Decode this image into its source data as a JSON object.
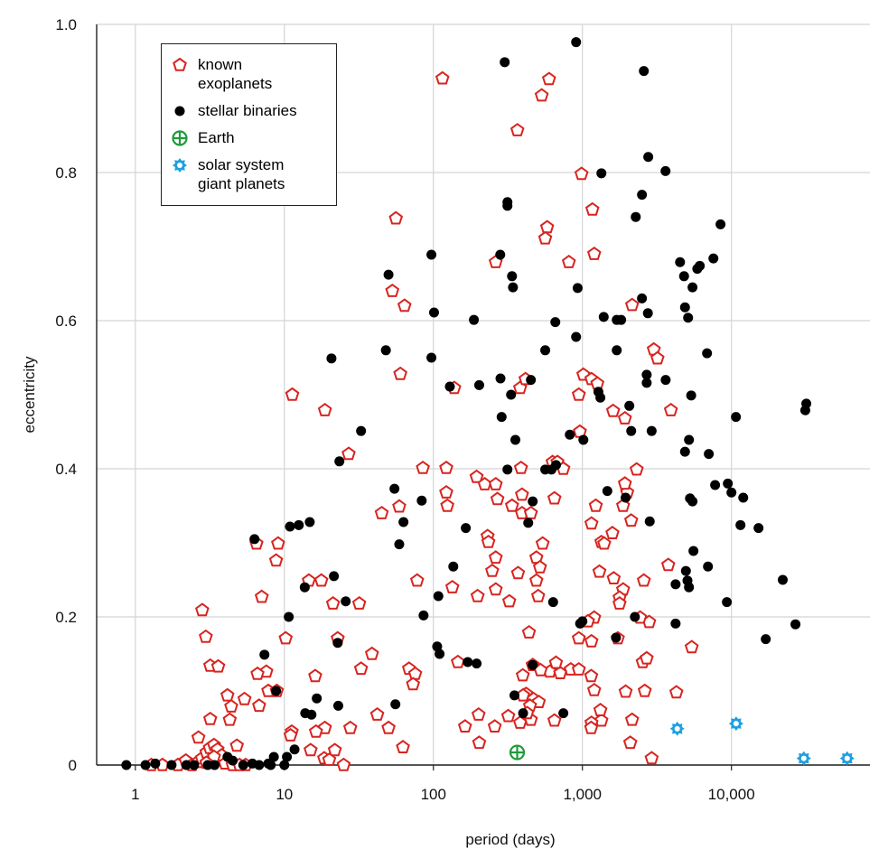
{
  "chart_data": {
    "type": "scatter",
    "xlabel": "period (days)",
    "ylabel": "eccentricity",
    "xscale": "log",
    "xlim": [
      0.55,
      85000
    ],
    "ylim": [
      0,
      1
    ],
    "xticks": [
      1,
      10,
      100,
      {
        "value": 1000,
        "label": "1,000"
      },
      {
        "value": 10000,
        "label": "10,000"
      }
    ],
    "yticks": [
      0,
      0.2,
      0.4,
      0.6,
      0.8,
      {
        "value": 1,
        "label": "1.0"
      }
    ],
    "grid": true,
    "legend": "upper left",
    "series": [
      {
        "name": "known exoplanets",
        "color": "#d8241f",
        "marker": "pentagon",
        "x": [
          115,
          597,
          533,
          366,
          986,
          1167,
          56,
          580,
          563,
          1200,
          811,
          262,
          53,
          64,
          2155,
          3013,
          3190,
          60,
          1015,
          1150,
          1260,
          382,
          138,
          415,
          11.3,
          946,
          18.7,
          1607,
          3925,
          1928,
          962,
          27,
          85,
          122,
          387,
          631,
          680,
          745,
          2313,
          195,
          221,
          262,
          122,
          393,
          269,
          649,
          124,
          337,
          393,
          451,
          45,
          59,
          1150,
          1230,
          1875,
          2125,
          2000,
          1928,
          231,
          234,
          541,
          1341,
          1400,
          1590,
          9.08,
          6.5,
          8.8,
          262,
          491,
          519,
          248,
          1300,
          1622,
          2584,
          3767,
          14.6,
          17.7,
          77.8,
          491,
          370,
          262,
          1875,
          1775,
          1775,
          505,
          198,
          323,
          134,
          7.05,
          21.2,
          2.81,
          31.8,
          1200,
          1090,
          2806,
          2440,
          1150,
          946,
          438,
          1728,
          5410,
          10.2,
          22.8,
          2.97,
          38.7,
          32.7,
          7.57,
          6.6,
          16.1,
          68.6,
          75.5,
          73,
          3.18,
          3.6,
          146,
          464,
          835,
          946,
          604,
          710,
          665,
          1145,
          2540,
          2700,
          1200,
          398,
          524,
          419,
          470,
          510,
          445,
          400,
          4270,
          1950,
          2620,
          7.8,
          8.9,
          5.4,
          4.15,
          4.4,
          6.77,
          4.3,
          3.18,
          42,
          201,
          318,
          382,
          451,
          426,
          163,
          258,
          1341,
          1150,
          1320,
          2155,
          649,
          1145,
          50,
          27.7,
          18.7,
          16.3,
          11.2,
          11,
          62.5,
          203,
          2095,
          15,
          21.8,
          18.5,
          20,
          2915,
          25,
          1.28,
          1.52,
          1.93,
          2.18,
          2.4,
          2.62,
          2.8,
          3.0,
          3.16,
          3.37,
          3.56,
          3.8,
          4.0,
          4.5,
          5,
          5.5,
          4.8,
          2.65,
          3.37,
          3.0
        ],
        "y": [
          0.927,
          0.926,
          0.904,
          0.857,
          0.798,
          0.75,
          0.738,
          0.726,
          0.711,
          0.69,
          0.679,
          0.679,
          0.64,
          0.62,
          0.621,
          0.561,
          0.549,
          0.528,
          0.527,
          0.521,
          0.515,
          0.509,
          0.509,
          0.521,
          0.5,
          0.5,
          0.479,
          0.478,
          0.479,
          0.468,
          0.45,
          0.42,
          0.401,
          0.401,
          0.401,
          0.409,
          0.409,
          0.4,
          0.399,
          0.389,
          0.379,
          0.379,
          0.368,
          0.365,
          0.359,
          0.36,
          0.35,
          0.35,
          0.34,
          0.34,
          0.34,
          0.349,
          0.326,
          0.35,
          0.35,
          0.33,
          0.368,
          0.38,
          0.309,
          0.301,
          0.299,
          0.301,
          0.299,
          0.313,
          0.299,
          0.299,
          0.276,
          0.28,
          0.28,
          0.267,
          0.262,
          0.261,
          0.252,
          0.249,
          0.27,
          0.249,
          0.249,
          0.249,
          0.249,
          0.259,
          0.237,
          0.237,
          0.226,
          0.218,
          0.228,
          0.228,
          0.221,
          0.24,
          0.227,
          0.218,
          0.209,
          0.218,
          0.199,
          0.194,
          0.193,
          0.199,
          0.167,
          0.171,
          0.179,
          0.171,
          0.159,
          0.171,
          0.171,
          0.173,
          0.15,
          0.13,
          0.126,
          0.123,
          0.12,
          0.13,
          0.123,
          0.109,
          0.134,
          0.133,
          0.139,
          0.135,
          0.129,
          0.129,
          0.126,
          0.124,
          0.138,
          0.12,
          0.139,
          0.144,
          0.101,
          0.121,
          0.128,
          0.096,
          0.089,
          0.085,
          0.08,
          0.094,
          0.098,
          0.099,
          0.1,
          0.1,
          0.1,
          0.089,
          0.094,
          0.079,
          0.08,
          0.061,
          0.062,
          0.068,
          0.068,
          0.066,
          0.057,
          0.061,
          0.07,
          0.052,
          0.052,
          0.06,
          0.057,
          0.074,
          0.061,
          0.06,
          0.05,
          0.05,
          0.05,
          0.05,
          0.045,
          0.045,
          0.04,
          0.024,
          0.03,
          0.03,
          0.02,
          0.02,
          0.009,
          0.007,
          0.009,
          0,
          0,
          0,
          0,
          0.006,
          0,
          0.004,
          0.009,
          0.017,
          0.023,
          0.027,
          0.021,
          0.013,
          0.002,
          0,
          0,
          0,
          0.026,
          0.037,
          0.011,
          0.003
        ]
      },
      {
        "name": "stellar binaries",
        "color": "#000000",
        "marker": "circle",
        "x": [
          907,
          301,
          2584,
          1341,
          2766,
          3612,
          2510,
          314,
          314,
          2280,
          8450,
          281,
          97,
          7570,
          6130,
          5900,
          4520,
          4810,
          5480,
          50,
          337,
          342,
          929,
          2510,
          4880,
          2750,
          101,
          1390,
          1700,
          1820,
          187,
          5120,
          658,
          907,
          6860,
          48,
          563,
          1700,
          20.7,
          97,
          5370,
          332,
          31800,
          31300,
          282,
          3620,
          2700,
          2700,
          1280,
          1320,
          451,
          129,
          203,
          287,
          10720,
          2065,
          2125,
          2915,
          32.7,
          1015,
          355,
          823,
          5190,
          4880,
          7050,
          23.4,
          665,
          563,
          620,
          314,
          9460,
          7770,
          10000,
          12000,
          5270,
          5480,
          464,
          54.8,
          83.5,
          1470,
          1950,
          63,
          433,
          2830,
          11500,
          15200,
          165,
          14.8,
          12.5,
          10.9,
          59,
          6.3,
          5560,
          136,
          6960,
          21.5,
          4950,
          22100,
          5070,
          4220,
          5190,
          13.7,
          25.8,
          636,
          108,
          26900,
          4220,
          10.7,
          85.9,
          2250,
          965,
          1000,
          17000,
          1680,
          22.8,
          9320,
          7.35,
          106,
          110,
          170,
          195,
          464,
          8.8,
          16.5,
          13.8,
          15.2,
          23,
          55.6,
          400,
          745,
          350,
          7.8,
          6.77,
          8.5,
          10.4,
          11.7,
          8.1,
          10,
          0.87,
          1.17,
          1.36,
          1.75,
          2.2,
          2.48,
          3.06,
          3.4,
          4.15,
          4.5,
          5.3,
          6.1
        ],
        "y": [
          0.976,
          0.949,
          0.937,
          0.799,
          0.821,
          0.802,
          0.77,
          0.76,
          0.755,
          0.74,
          0.73,
          0.689,
          0.689,
          0.684,
          0.674,
          0.67,
          0.679,
          0.66,
          0.645,
          0.662,
          0.66,
          0.645,
          0.644,
          0.63,
          0.618,
          0.61,
          0.611,
          0.605,
          0.601,
          0.601,
          0.601,
          0.604,
          0.598,
          0.578,
          0.556,
          0.56,
          0.56,
          0.56,
          0.549,
          0.55,
          0.499,
          0.5,
          0.488,
          0.479,
          0.522,
          0.52,
          0.527,
          0.516,
          0.504,
          0.496,
          0.52,
          0.511,
          0.513,
          0.47,
          0.47,
          0.485,
          0.451,
          0.451,
          0.451,
          0.439,
          0.439,
          0.446,
          0.439,
          0.423,
          0.42,
          0.41,
          0.405,
          0.399,
          0.399,
          0.399,
          0.38,
          0.378,
          0.368,
          0.361,
          0.36,
          0.356,
          0.356,
          0.373,
          0.357,
          0.37,
          0.361,
          0.328,
          0.327,
          0.329,
          0.324,
          0.32,
          0.32,
          0.328,
          0.324,
          0.322,
          0.298,
          0.305,
          0.289,
          0.268,
          0.268,
          0.255,
          0.262,
          0.25,
          0.249,
          0.244,
          0.24,
          0.24,
          0.221,
          0.22,
          0.228,
          0.19,
          0.191,
          0.2,
          0.202,
          0.2,
          0.191,
          0.194,
          0.17,
          0.172,
          0.165,
          0.22,
          0.149,
          0.16,
          0.15,
          0.139,
          0.137,
          0.135,
          0.1,
          0.09,
          0.07,
          0.068,
          0.08,
          0.082,
          0.07,
          0.07,
          0.094,
          0.002,
          0,
          0.011,
          0.011,
          0.021,
          0,
          0,
          0,
          0,
          0.002,
          0,
          0,
          0,
          0,
          0,
          0.011,
          0.006,
          0,
          0.002
        ]
      },
      {
        "name": "Earth",
        "color": "#1e9b3a",
        "marker": "circle-plus",
        "x": [
          365
        ],
        "y": [
          0.017
        ]
      },
      {
        "name": "solar system giant planets",
        "color": "#1ea0e0",
        "marker": "star",
        "x": [
          4330,
          10750,
          30600,
          59800
        ],
        "y": [
          0.049,
          0.056,
          0.009,
          0.009
        ]
      }
    ]
  }
}
